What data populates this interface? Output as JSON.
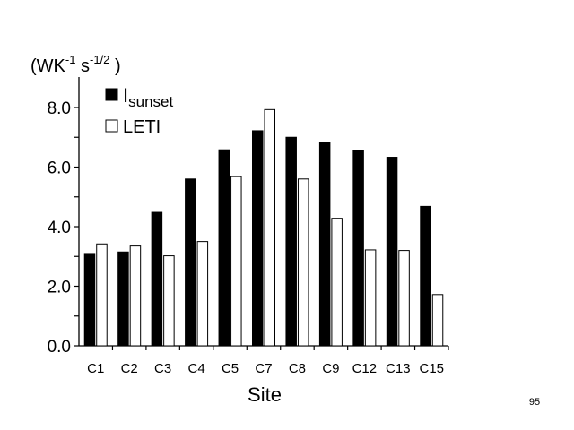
{
  "chart_data": {
    "type": "bar",
    "xlabel": "Site",
    "ylabel_parts": {
      "base": "(WK",
      "exp1": "-1",
      "mid": " s",
      "exp2": "-1/2",
      "end": " )"
    },
    "categories": [
      "C1",
      "C2",
      "C3",
      "C4",
      "C5",
      "C7",
      "C8",
      "C9",
      "C12",
      "C13",
      "C15"
    ],
    "series": [
      {
        "name_base": "I",
        "name_sub": "sunset",
        "fill": "#000000",
        "values": [
          3.1,
          3.15,
          4.48,
          5.6,
          6.58,
          7.22,
          7.0,
          6.84,
          6.55,
          6.33,
          4.68
        ]
      },
      {
        "name": "LETI",
        "fill": "#ffffff",
        "values": [
          3.42,
          3.35,
          3.02,
          3.5,
          5.68,
          7.93,
          5.6,
          4.28,
          3.22,
          3.2,
          1.72
        ]
      }
    ],
    "ylim": [
      0,
      9
    ],
    "yticks": [
      "0.0",
      "2.0",
      "4.0",
      "6.0",
      "8.0"
    ],
    "grid": false,
    "legend_position": "top-left"
  },
  "page_number": "95"
}
